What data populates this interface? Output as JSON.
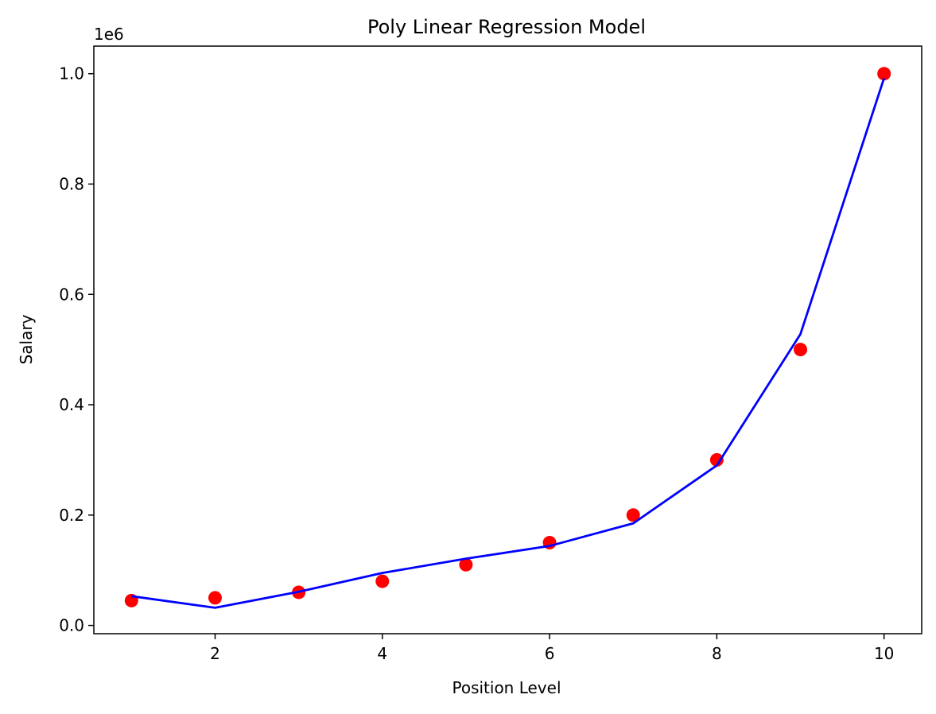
{
  "chart_data": {
    "type": "scatter",
    "title": "Poly Linear Regression Model",
    "xlabel": "Position Level",
    "ylabel": "Salary",
    "y_offset_label": "1e6",
    "xlim": [
      0.55,
      10.45
    ],
    "ylim": [
      -15000,
      1050000
    ],
    "x_ticks": [
      2,
      4,
      6,
      8,
      10
    ],
    "x_tick_labels": [
      "2",
      "4",
      "6",
      "8",
      "10"
    ],
    "y_ticks": [
      0,
      200000,
      400000,
      600000,
      800000,
      1000000
    ],
    "y_tick_labels": [
      "0.0",
      "0.2",
      "0.4",
      "0.6",
      "0.8",
      "1.0"
    ],
    "grid": false,
    "series": [
      {
        "kind": "scatter",
        "color": "#ff0000",
        "x": [
          1,
          2,
          3,
          4,
          5,
          6,
          7,
          8,
          9,
          10
        ],
        "y": [
          45000,
          50000,
          60000,
          80000,
          110000,
          150000,
          200000,
          300000,
          500000,
          1000000
        ]
      },
      {
        "kind": "line",
        "color": "#0000ff",
        "x": [
          1,
          2,
          3,
          4,
          5,
          6,
          7,
          8,
          9,
          10
        ],
        "y": [
          53000,
          32000,
          61000,
          95000,
          121000,
          144000,
          185000,
          290000,
          528000,
          992000
        ]
      }
    ]
  }
}
